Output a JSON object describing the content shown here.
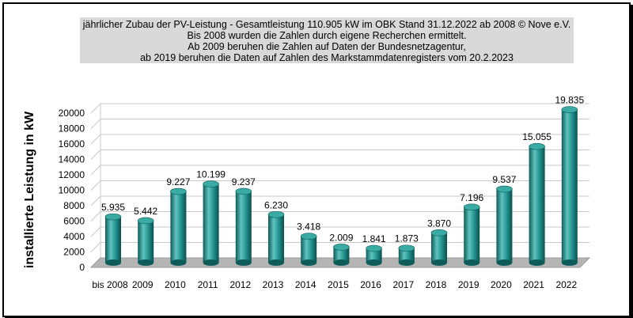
{
  "header": {
    "line1": "jährlicher Zubau der PV-Leistung - Gesamtleistung 110.905 kW  im OBK  Stand 31.12.2022 ab 2008     © Nove e.V.",
    "line2": "Bis 2008 wurden die Zahlen durch eigene Recherchen ermittelt.",
    "line3": "Ab 2009 beruhen die Zahlen auf Daten der Bundesnetzagentur,",
    "line4": "ab 2019 beruhen die Daten auf Zahlen des Markstammdatenregisters vom 20.2.2023"
  },
  "chart_data": {
    "type": "bar",
    "title": "jährlicher Zubau der PV-Leistung - Gesamtleistung 110.905 kW  im OBK  Stand 31.12.2022 ab 2008     © Nove e.V.",
    "ylabel": "installierte Leistung in kW",
    "xlabel": "",
    "ylim": [
      0,
      20000
    ],
    "yticks": [
      0,
      2000,
      4000,
      6000,
      8000,
      10000,
      12000,
      14000,
      16000,
      18000,
      20000
    ],
    "categories": [
      "bis 2008",
      "2009",
      "2010",
      "2011",
      "2012",
      "2013",
      "2014",
      "2015",
      "2016",
      "2017",
      "2018",
      "2019",
      "2020",
      "2021",
      "2022"
    ],
    "values": [
      5935,
      5442,
      9227,
      10199,
      9237,
      6230,
      3418,
      2009,
      1841,
      1873,
      3870,
      7196,
      9537,
      15055,
      19835
    ],
    "data_labels": [
      "5.935",
      "5.442",
      "9.227",
      "10.199",
      "9.237",
      "6.230",
      "3.418",
      "2.009",
      "1.841",
      "1.873",
      "3.870",
      "7.196",
      "9.537",
      "15.055",
      "19.835"
    ],
    "grid": true,
    "bar_style": "3d-cylinder",
    "colors": {
      "bar": "#1e8c88",
      "bar_dark": "#0e5c59",
      "bar_light": "#5fc4bf",
      "bar_top": "#3aaaa5",
      "floor": "#b5b5b5",
      "grid": "#c8c8c8"
    }
  }
}
